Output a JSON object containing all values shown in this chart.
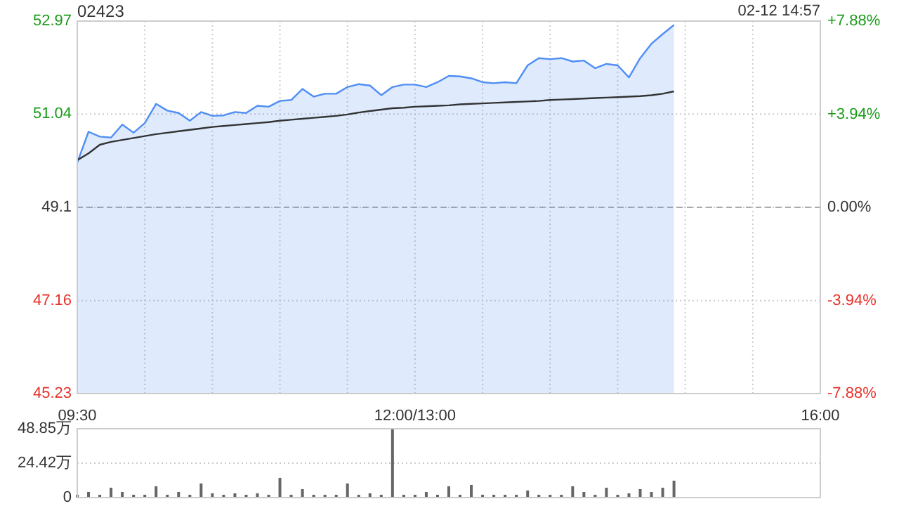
{
  "chart_data": [
    {
      "type": "line",
      "title": "02423",
      "annotations": [
        "02-12 14:57"
      ],
      "categories": [
        "09:30",
        null,
        null,
        null,
        null,
        null,
        null,
        null,
        null,
        null,
        null,
        null,
        null,
        null,
        null,
        null,
        null,
        null,
        null,
        null,
        null,
        null,
        null,
        null,
        null,
        null,
        null,
        null,
        null,
        null,
        "12:00/13:00",
        null,
        null,
        null,
        null,
        null,
        null,
        null,
        null,
        null,
        null,
        null,
        null,
        null,
        null,
        null,
        null,
        null,
        null,
        null,
        null,
        null,
        null,
        null,
        null,
        null,
        null,
        null,
        null,
        null,
        null,
        null,
        null,
        null,
        null,
        null,
        "16:00"
      ],
      "ylim": [
        45.23,
        52.97
      ],
      "yticks": [
        45.23,
        47.16,
        49.1,
        51.04,
        52.97
      ],
      "y2lim": [
        -7.88,
        7.88
      ],
      "y2ticks": [
        {
          "value": -7.88,
          "label": "-7.88%"
        },
        {
          "value": -3.94,
          "label": "-3.94%"
        },
        {
          "value": 0,
          "label": "0.00%"
        },
        {
          "value": 3.94,
          "label": "+3.94%"
        },
        {
          "value": 7.88,
          "label": "+7.88%"
        }
      ],
      "grid": true,
      "ref_lines": [
        {
          "axis": "y",
          "value": 49.1,
          "color": "#aaaaaa",
          "line_style": "dashed"
        }
      ],
      "series": [
        {
          "type": "area",
          "color": "#4f8ef5",
          "values": [
            50.03,
            50.67,
            50.57,
            50.55,
            50.82,
            50.65,
            50.85,
            51.25,
            51.11,
            51.06,
            50.9,
            51.08,
            51.0,
            51.01,
            51.08,
            51.06,
            51.21,
            51.19,
            51.31,
            51.33,
            51.56,
            51.4,
            51.46,
            51.46,
            51.6,
            51.66,
            51.63,
            51.43,
            51.6,
            51.65,
            51.65,
            51.6,
            51.7,
            51.83,
            51.82,
            51.78,
            51.7,
            51.68,
            51.7,
            51.68,
            52.05,
            52.2,
            52.18,
            52.2,
            52.13,
            52.15,
            51.99,
            52.08,
            52.05,
            51.8,
            52.2,
            52.5,
            52.7,
            52.89,
            null,
            null,
            null,
            null,
            null,
            null,
            null,
            null,
            null,
            null,
            null,
            null,
            null
          ]
        },
        {
          "color": "#333333",
          "values": [
            50.08,
            50.22,
            50.4,
            50.46,
            50.5,
            50.54,
            50.58,
            50.62,
            50.65,
            50.68,
            50.71,
            50.74,
            50.77,
            50.79,
            50.81,
            50.83,
            50.85,
            50.87,
            50.9,
            50.92,
            50.94,
            50.96,
            50.98,
            51.0,
            51.03,
            51.07,
            51.1,
            51.13,
            51.16,
            51.17,
            51.19,
            51.2,
            51.21,
            51.22,
            51.24,
            51.25,
            51.26,
            51.27,
            51.28,
            51.29,
            51.3,
            51.31,
            51.33,
            51.34,
            51.35,
            51.36,
            51.37,
            51.38,
            51.39,
            51.4,
            51.41,
            51.43,
            51.46,
            51.51,
            null,
            null,
            null,
            null,
            null,
            null,
            null,
            null,
            null,
            null,
            null,
            null,
            null
          ]
        }
      ]
    },
    {
      "type": "bar",
      "color": "#666666",
      "tick_labels": "y",
      "categories": [
        null,
        null,
        null,
        null,
        null,
        null,
        null,
        null,
        null,
        null,
        null,
        null,
        null,
        null,
        null,
        null,
        null,
        null,
        null,
        null,
        null,
        null,
        null,
        null,
        null,
        null,
        null,
        null,
        null,
        null,
        null,
        null,
        null,
        null,
        null,
        null,
        null,
        null,
        null,
        null,
        null,
        null,
        null,
        null,
        null,
        null,
        null,
        null,
        null,
        null,
        null,
        null,
        null,
        null,
        null,
        null,
        null,
        null,
        null,
        null,
        null,
        null,
        null,
        null,
        null,
        null,
        null
      ],
      "ylim": [
        0,
        48.85
      ],
      "yticks": [
        0,
        {
          "value": 24.42,
          "label": "24.42万"
        },
        {
          "value": 48.85,
          "label": "48.85万"
        }
      ],
      "grid": "y",
      "values": [
        2,
        4,
        2,
        7,
        4,
        2,
        2,
        8,
        2,
        4,
        2,
        10,
        3,
        2,
        3,
        2,
        3,
        2,
        14,
        2,
        6,
        2,
        2,
        2,
        10,
        2,
        3,
        2,
        48.85,
        2,
        2,
        4,
        2,
        8,
        2,
        9,
        2,
        2,
        2,
        2,
        5,
        2,
        2,
        2,
        8,
        4,
        2,
        7,
        2,
        3,
        6,
        4,
        7,
        12,
        null,
        null,
        null,
        null,
        null,
        null,
        null,
        null,
        null,
        null,
        null,
        null,
        null
      ]
    }
  ]
}
